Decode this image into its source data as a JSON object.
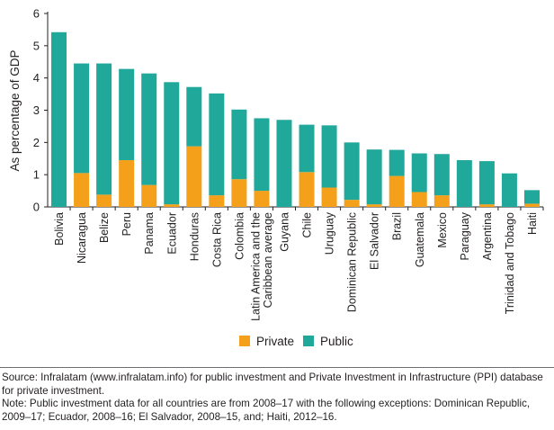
{
  "chart_data": {
    "type": "bar",
    "stacked": true,
    "title": "",
    "xlabel": "",
    "ylabel": "As percentage of GDP",
    "ylim": [
      0,
      6
    ],
    "yticks": [
      0,
      1,
      2,
      3,
      4,
      5,
      6
    ],
    "grid": false,
    "legend_position": "bottom-center",
    "categories": [
      "Bolivia",
      "Nicaragua",
      "Belize",
      "Peru",
      "Panama",
      "Ecuador",
      "Honduras",
      "Costa Rica",
      "Colombia",
      "Latin America and the Caribbean average",
      "Guyana",
      "Chile",
      "Uruguay",
      "Dominican Republic",
      "El Salvador",
      "Brazil",
      "Guatemala",
      "Mexico",
      "Paraguay",
      "Argentina",
      "Trinidad and Tobago",
      "Haiti"
    ],
    "category_lines": [
      [
        "Bolivia"
      ],
      [
        "Nicaragua"
      ],
      [
        "Belize"
      ],
      [
        "Peru"
      ],
      [
        "Panama"
      ],
      [
        "Ecuador"
      ],
      [
        "Honduras"
      ],
      [
        "Costa Rica"
      ],
      [
        "Colombia"
      ],
      [
        "Latin America and the",
        "Caribbean average"
      ],
      [
        "Guyana"
      ],
      [
        "Chile"
      ],
      [
        "Uruguay"
      ],
      [
        "Dominican Republic"
      ],
      [
        "El Salvador"
      ],
      [
        "Brazil"
      ],
      [
        "Guatemala"
      ],
      [
        "Mexico"
      ],
      [
        "Paraguay"
      ],
      [
        "Argentina"
      ],
      [
        "Trinidad and Tobago"
      ],
      [
        "Haiti"
      ]
    ],
    "series": [
      {
        "name": "Private",
        "color": "#f5a01a",
        "values": [
          0,
          1.05,
          0.38,
          1.45,
          0.68,
          0.08,
          1.88,
          0.36,
          0.86,
          0.5,
          0,
          1.08,
          0.6,
          0.22,
          0.08,
          0.96,
          0.46,
          0.36,
          0,
          0.08,
          0,
          0.1
        ]
      },
      {
        "name": "Public",
        "color": "#20a89a",
        "values": [
          5.42,
          3.4,
          4.07,
          2.83,
          3.46,
          3.79,
          1.84,
          3.16,
          2.16,
          2.25,
          2.7,
          1.47,
          1.93,
          1.78,
          1.7,
          0.81,
          1.2,
          1.28,
          1.45,
          1.34,
          1.04,
          0.42
        ]
      }
    ]
  },
  "notes": {
    "source": "Source: Infralatam (www.infralatam.info) for public investment and Private Investment in Infrastructure (PPI) database for private investment.",
    "note": "Note: Public investment data for all countries are from 2008–17 with the following exceptions: Dominican Republic, 2009–17; Ecuador, 2008–16; El Salvador, 2008–15, and; Haiti, 2012–16."
  }
}
